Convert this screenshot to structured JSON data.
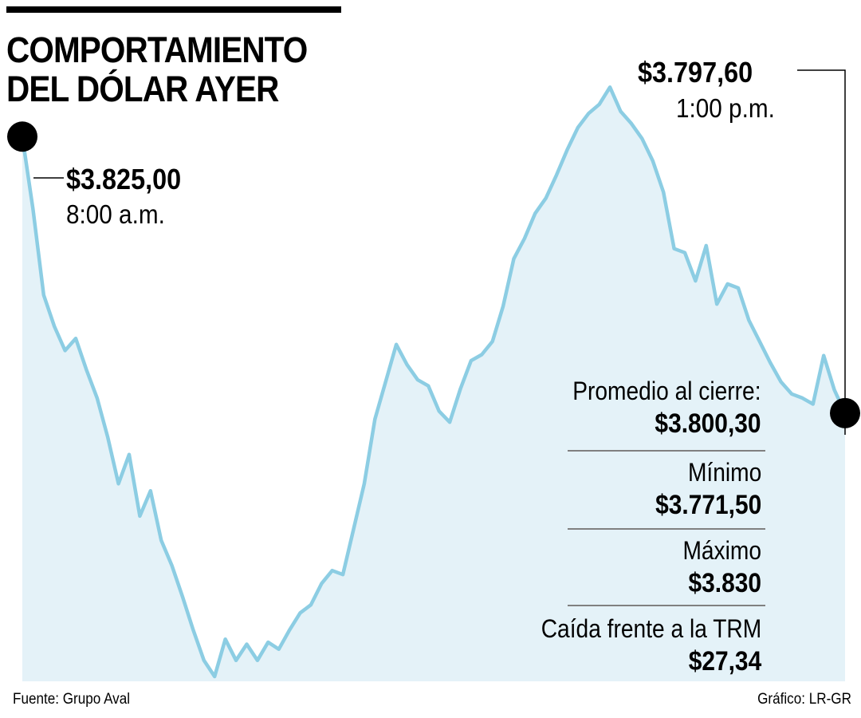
{
  "title_lines": [
    "COMPORTAMIENTO",
    "DEL DÓLAR AYER"
  ],
  "colors": {
    "line": "#8ccde3",
    "area": "#e4f2f8",
    "marker": "#000000",
    "divider": "#808080"
  },
  "annotations": {
    "open": {
      "value": "$3.825,00",
      "time": "8:00 a.m."
    },
    "close": {
      "value": "$3.797,60",
      "time": "1:00 p.m."
    }
  },
  "stats": [
    {
      "label": "Promedio al cierre:",
      "value": "$3.800,30"
    },
    {
      "label": "Mínimo",
      "value": "$3.771,50"
    },
    {
      "label": "Máximo",
      "value": "$3.830"
    },
    {
      "label": "Caída frente a la TRM",
      "value": "$27,34"
    }
  ],
  "footer": {
    "source": "Fuente: Grupo Aval",
    "credit": "Gráfico: LR-GR"
  },
  "chart_data": {
    "type": "area",
    "x_range": [
      "8:00 a.m.",
      "1:00 p.m."
    ],
    "ylim": [
      3771.5,
      3830
    ],
    "grid": false,
    "legend": "none",
    "points": [
      [
        "8:00 a.m.",
        3825.0
      ],
      [
        null,
        3817.8
      ],
      [
        null,
        3809.3
      ],
      [
        null,
        3806.2
      ],
      [
        null,
        3803.8
      ],
      [
        null,
        3805.0
      ],
      [
        null,
        3801.9
      ],
      [
        null,
        3799.1
      ],
      [
        null,
        3795.2
      ],
      [
        null,
        3790.6
      ],
      [
        null,
        3793.5
      ],
      [
        null,
        3787.4
      ],
      [
        null,
        3789.9
      ],
      [
        null,
        3785.0
      ],
      [
        null,
        3782.5
      ],
      [
        null,
        3779.4
      ],
      [
        null,
        3776.1
      ],
      [
        null,
        3773.1
      ],
      [
        null,
        3771.5
      ],
      [
        null,
        3775.2
      ],
      [
        null,
        3773.1
      ],
      [
        null,
        3774.7
      ],
      [
        null,
        3773.1
      ],
      [
        null,
        3774.9
      ],
      [
        null,
        3774.2
      ],
      [
        null,
        3776.1
      ],
      [
        null,
        3777.8
      ],
      [
        null,
        3778.6
      ],
      [
        null,
        3780.7
      ],
      [
        null,
        3782.0
      ],
      [
        null,
        3781.6
      ],
      [
        null,
        3786.1
      ],
      [
        null,
        3790.6
      ],
      [
        null,
        3797.0
      ],
      [
        null,
        3800.7
      ],
      [
        null,
        3804.4
      ],
      [
        null,
        3802.4
      ],
      [
        null,
        3800.9
      ],
      [
        null,
        3800.3
      ],
      [
        null,
        3797.8
      ],
      [
        null,
        3796.7
      ],
      [
        null,
        3800.0
      ],
      [
        null,
        3802.8
      ],
      [
        null,
        3803.4
      ],
      [
        null,
        3804.7
      ],
      [
        null,
        3808.2
      ],
      [
        null,
        3812.9
      ],
      [
        null,
        3814.9
      ],
      [
        null,
        3817.4
      ],
      [
        null,
        3818.9
      ],
      [
        null,
        3821.2
      ],
      [
        null,
        3823.7
      ],
      [
        null,
        3825.9
      ],
      [
        null,
        3827.3
      ],
      [
        null,
        3828.2
      ],
      [
        null,
        3829.9
      ],
      [
        null,
        3827.5
      ],
      [
        null,
        3826.3
      ],
      [
        null,
        3824.8
      ],
      [
        null,
        3822.6
      ],
      [
        null,
        3819.5
      ],
      [
        null,
        3813.9
      ],
      [
        null,
        3813.5
      ],
      [
        null,
        3810.7
      ],
      [
        null,
        3814.2
      ],
      [
        null,
        3808.4
      ],
      [
        null,
        3810.4
      ],
      [
        null,
        3810.0
      ],
      [
        null,
        3806.8
      ],
      [
        null,
        3804.7
      ],
      [
        null,
        3802.6
      ],
      [
        null,
        3800.7
      ],
      [
        null,
        3799.5
      ],
      [
        null,
        3799.1
      ],
      [
        null,
        3798.5
      ],
      [
        null,
        3803.3
      ],
      [
        null,
        3799.9
      ],
      [
        "1:00 p.m.",
        3797.6
      ]
    ]
  }
}
